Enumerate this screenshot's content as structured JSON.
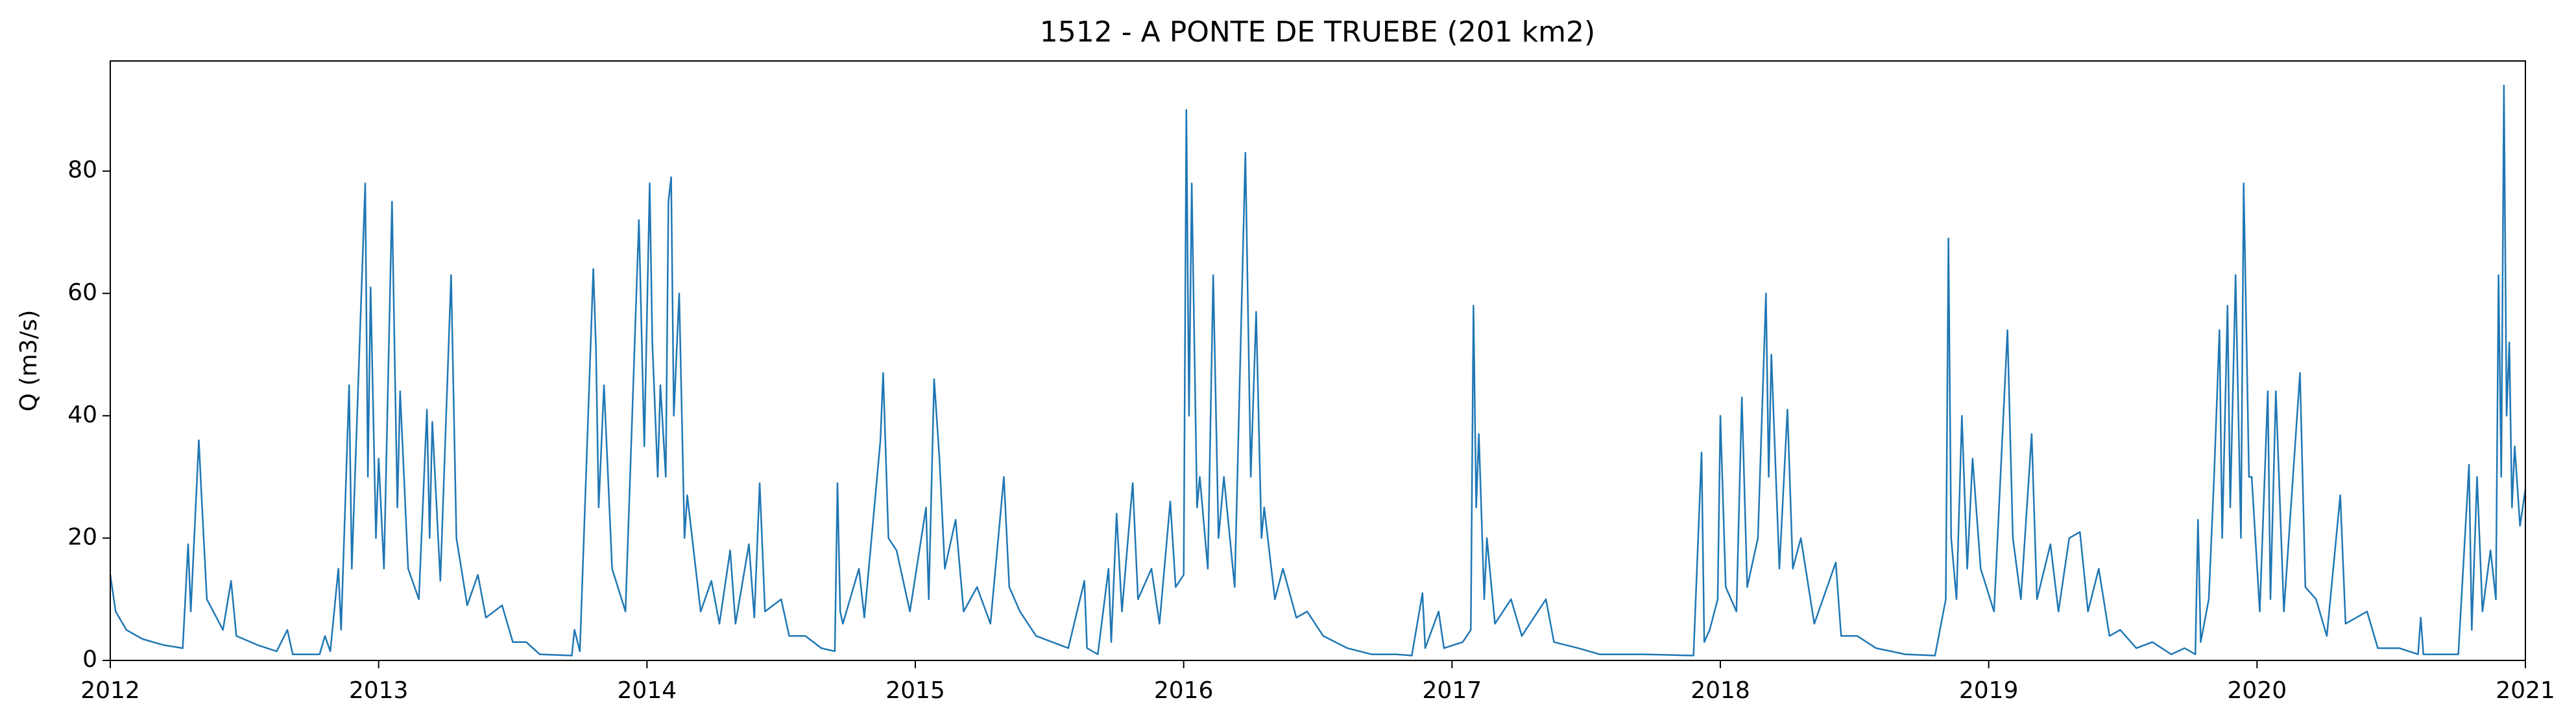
{
  "chart_data": {
    "type": "line",
    "title": "1512 - A PONTE DE TRUEBE (201 km2)",
    "y_label": "Q (m3/s)",
    "xlim": [
      2012,
      2021
    ],
    "xticks": [
      2012,
      2013,
      2014,
      2015,
      2016,
      2017,
      2018,
      2019,
      2020,
      2021
    ],
    "ylim": [
      0,
      98
    ],
    "yticks": [
      0,
      20,
      40,
      60,
      80
    ],
    "grid": false,
    "color": "#1f77b4",
    "x": [
      2012.0,
      2012.02,
      2012.06,
      2012.12,
      2012.2,
      2012.27,
      2012.29,
      2012.3,
      2012.33,
      2012.34,
      2012.36,
      2012.42,
      2012.45,
      2012.47,
      2012.55,
      2012.62,
      2012.66,
      2012.68,
      2012.78,
      2012.8,
      2012.82,
      2012.85,
      2012.86,
      2012.89,
      2012.9,
      2012.95,
      2012.96,
      2012.97,
      2012.99,
      2013.0,
      2013.02,
      2013.05,
      2013.06,
      2013.07,
      2013.08,
      2013.11,
      2013.15,
      2013.18,
      2013.19,
      2013.2,
      2013.23,
      2013.27,
      2013.29,
      2013.33,
      2013.37,
      2013.4,
      2013.46,
      2013.5,
      2013.55,
      2013.6,
      2013.72,
      2013.73,
      2013.75,
      2013.8,
      2013.81,
      2013.82,
      2013.84,
      2013.87,
      2013.92,
      2013.97,
      2013.99,
      2014.01,
      2014.02,
      2014.04,
      2014.05,
      2014.07,
      2014.08,
      2014.09,
      2014.1,
      2014.12,
      2014.14,
      2014.15,
      2014.2,
      2014.24,
      2014.27,
      2014.31,
      2014.33,
      2014.38,
      2014.4,
      2014.42,
      2014.44,
      2014.5,
      2014.53,
      2014.59,
      2014.65,
      2014.7,
      2014.71,
      2014.72,
      2014.73,
      2014.79,
      2014.81,
      2014.87,
      2014.88,
      2014.9,
      2014.93,
      2014.98,
      2015.04,
      2015.05,
      2015.07,
      2015.09,
      2015.11,
      2015.15,
      2015.18,
      2015.23,
      2015.28,
      2015.33,
      2015.35,
      2015.39,
      2015.45,
      2015.57,
      2015.63,
      2015.64,
      2015.68,
      2015.72,
      2015.73,
      2015.75,
      2015.77,
      2015.81,
      2015.83,
      2015.88,
      2015.91,
      2015.95,
      2015.97,
      2016.0,
      2016.01,
      2016.02,
      2016.03,
      2016.05,
      2016.06,
      2016.09,
      2016.11,
      2016.13,
      2016.15,
      2016.19,
      2016.23,
      2016.25,
      2016.27,
      2016.29,
      2016.3,
      2016.34,
      2016.37,
      2016.42,
      2016.46,
      2016.52,
      2016.61,
      2016.7,
      2016.79,
      2016.85,
      2016.89,
      2016.9,
      2016.95,
      2016.97,
      2017.04,
      2017.07,
      2017.08,
      2017.09,
      2017.1,
      2017.12,
      2017.13,
      2017.16,
      2017.22,
      2017.26,
      2017.35,
      2017.38,
      2017.47,
      2017.55,
      2017.71,
      2017.9,
      2017.93,
      2017.94,
      2017.96,
      2017.99,
      2018.0,
      2018.02,
      2018.06,
      2018.08,
      2018.1,
      2018.14,
      2018.17,
      2018.18,
      2018.19,
      2018.22,
      2018.25,
      2018.27,
      2018.3,
      2018.35,
      2018.43,
      2018.45,
      2018.51,
      2018.58,
      2018.69,
      2018.8,
      2018.84,
      2018.85,
      2018.86,
      2018.88,
      2018.9,
      2018.92,
      2018.94,
      2018.97,
      2019.02,
      2019.07,
      2019.09,
      2019.12,
      2019.16,
      2019.18,
      2019.23,
      2019.26,
      2019.3,
      2019.34,
      2019.37,
      2019.41,
      2019.45,
      2019.49,
      2019.55,
      2019.61,
      2019.68,
      2019.73,
      2019.77,
      2019.78,
      2019.79,
      2019.82,
      2019.84,
      2019.86,
      2019.87,
      2019.89,
      2019.9,
      2019.92,
      2019.94,
      2019.95,
      2019.97,
      2019.98,
      2020.01,
      2020.04,
      2020.05,
      2020.07,
      2020.1,
      2020.16,
      2020.18,
      2020.22,
      2020.26,
      2020.31,
      2020.33,
      2020.41,
      2020.45,
      2020.53,
      2020.6,
      2020.61,
      2020.62,
      2020.75,
      2020.79,
      2020.8,
      2020.82,
      2020.84,
      2020.87,
      2020.89,
      2020.9,
      2020.91,
      2020.92,
      2020.93,
      2020.94,
      2020.95,
      2020.96,
      2020.98,
      2021.0
    ],
    "values": [
      14,
      8,
      5,
      3.5,
      2.5,
      2,
      19,
      8,
      36,
      27,
      10,
      5,
      13,
      4,
      2.5,
      1.5,
      5,
      1,
      1,
      4,
      1.5,
      15,
      5,
      45,
      15,
      78,
      30,
      61,
      20,
      33,
      15,
      75,
      49,
      25,
      44,
      15,
      10,
      41,
      20,
      39,
      13,
      63,
      20,
      9,
      14,
      7,
      9,
      3,
      3,
      1,
      0.8,
      5,
      1.5,
      64,
      51,
      25,
      45,
      15,
      8,
      72,
      35,
      78,
      52,
      30,
      45,
      30,
      75,
      79,
      40,
      60,
      20,
      27,
      8,
      13,
      6,
      18,
      6,
      19,
      7,
      29,
      8,
      10,
      4,
      4,
      2,
      1.5,
      29,
      8,
      6,
      15,
      7,
      36,
      47,
      20,
      18,
      8,
      25,
      10,
      46,
      33,
      15,
      23,
      8,
      12,
      6,
      30,
      12,
      8,
      4,
      2,
      13,
      2,
      1,
      15,
      3,
      24,
      8,
      29,
      10,
      15,
      6,
      26,
      12,
      14,
      90,
      40,
      78,
      25,
      30,
      15,
      63,
      20,
      30,
      12,
      83,
      30,
      57,
      20,
      25,
      10,
      15,
      7,
      8,
      4,
      2,
      1,
      1,
      0.8,
      11,
      2,
      8,
      2,
      3,
      5,
      58,
      25,
      37,
      10,
      20,
      6,
      10,
      4,
      10,
      3,
      2,
      1,
      1,
      0.8,
      34,
      3,
      5,
      10,
      40,
      12,
      8,
      43,
      12,
      20,
      60,
      30,
      50,
      15,
      41,
      15,
      20,
      6,
      16,
      4,
      4,
      2,
      1,
      0.8,
      10,
      69,
      20,
      10,
      40,
      15,
      33,
      15,
      8,
      54,
      20,
      10,
      37,
      10,
      19,
      8,
      20,
      21,
      8,
      15,
      4,
      5,
      2,
      3,
      1,
      2,
      1,
      23,
      3,
      10,
      30,
      54,
      20,
      58,
      25,
      63,
      20,
      78,
      30,
      30,
      8,
      44,
      10,
      44,
      8,
      47,
      12,
      10,
      4,
      27,
      6,
      8,
      2,
      2,
      1,
      7,
      1,
      1,
      32,
      5,
      30,
      8,
      18,
      10,
      63,
      30,
      94,
      40,
      52,
      25,
      35,
      22,
      28
    ]
  }
}
